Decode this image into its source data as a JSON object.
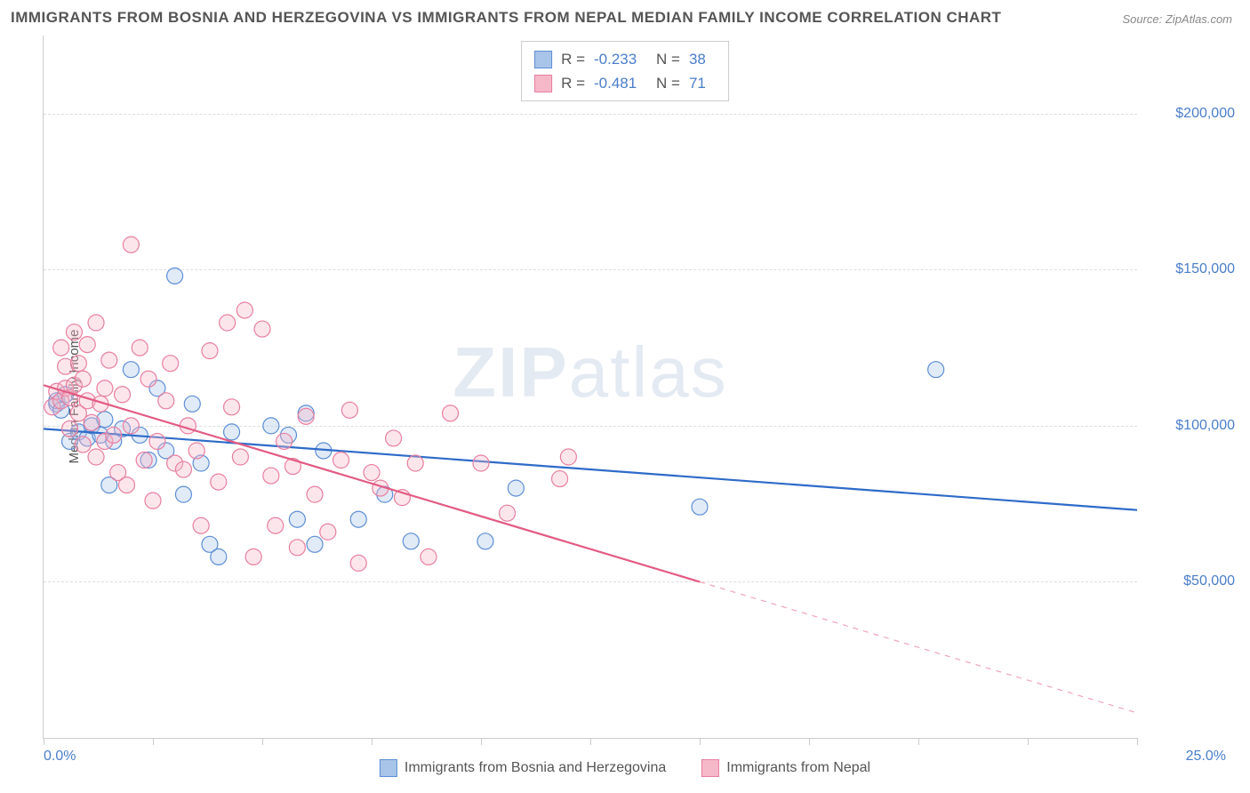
{
  "title": "IMMIGRANTS FROM BOSNIA AND HERZEGOVINA VS IMMIGRANTS FROM NEPAL MEDIAN FAMILY INCOME CORRELATION CHART",
  "source": "Source: ZipAtlas.com",
  "ylabel": "Median Family Income",
  "watermark_bold": "ZIP",
  "watermark_light": "atlas",
  "chart": {
    "type": "scatter",
    "background_color": "#ffffff",
    "grid_color": "#dddddd",
    "axis_color": "#cccccc",
    "xlim": [
      0.0,
      25.0
    ],
    "ylim": [
      0,
      225000
    ],
    "x_unit": "%",
    "y_prefix": "$",
    "yticks": [
      50000,
      100000,
      150000,
      200000
    ],
    "ytick_labels": [
      "$50,000",
      "$100,000",
      "$150,000",
      "$200,000"
    ],
    "xticks_minor": [
      0,
      2.5,
      5,
      7.5,
      10,
      12.5,
      15,
      17.5,
      20,
      22.5,
      25
    ],
    "xlim_labels": [
      "0.0%",
      "25.0%"
    ],
    "marker_radius": 9,
    "marker_stroke_width": 1.2,
    "marker_fill_opacity": 0.35,
    "line_width": 2.2,
    "label_fontsize": 15,
    "tick_fontsize": 16,
    "tick_color": "#4a7ec9",
    "series": [
      {
        "name": "Immigrants from Bosnia and Herzegovina",
        "color_fill": "#a8c4e8",
        "color_stroke": "#5c8fd6",
        "line_color": "#2e6bc9",
        "R": "-0.233",
        "N": "38",
        "trend": {
          "x1": 0.0,
          "y1": 99000,
          "x2": 25.0,
          "y2": 73000,
          "solid_until_x": 25.0
        },
        "points": [
          [
            0.3,
            107000
          ],
          [
            0.3,
            108000
          ],
          [
            0.4,
            105000
          ],
          [
            0.5,
            110000
          ],
          [
            0.6,
            95000
          ],
          [
            0.8,
            98000
          ],
          [
            1.0,
            96000
          ],
          [
            1.1,
            100000
          ],
          [
            1.3,
            97000
          ],
          [
            1.4,
            102000
          ],
          [
            1.5,
            81000
          ],
          [
            1.6,
            95000
          ],
          [
            1.8,
            99000
          ],
          [
            2.0,
            118000
          ],
          [
            2.2,
            97000
          ],
          [
            2.4,
            89000
          ],
          [
            2.6,
            112000
          ],
          [
            2.8,
            92000
          ],
          [
            3.0,
            148000
          ],
          [
            3.2,
            78000
          ],
          [
            3.4,
            107000
          ],
          [
            3.6,
            88000
          ],
          [
            3.8,
            62000
          ],
          [
            4.0,
            58000
          ],
          [
            4.3,
            98000
          ],
          [
            5.2,
            100000
          ],
          [
            5.6,
            97000
          ],
          [
            5.8,
            70000
          ],
          [
            6.0,
            104000
          ],
          [
            6.2,
            62000
          ],
          [
            6.4,
            92000
          ],
          [
            7.2,
            70000
          ],
          [
            7.8,
            78000
          ],
          [
            8.4,
            63000
          ],
          [
            10.1,
            63000
          ],
          [
            10.8,
            80000
          ],
          [
            15.0,
            74000
          ],
          [
            20.4,
            118000
          ]
        ]
      },
      {
        "name": "Immigrants from Nepal",
        "color_fill": "#f5b8c8",
        "color_stroke": "#e87fa0",
        "line_color": "#e35b83",
        "R": "-0.481",
        "N": "71",
        "trend": {
          "x1": 0.0,
          "y1": 113000,
          "x2": 25.0,
          "y2": 8000,
          "solid_until_x": 15.0
        },
        "points": [
          [
            0.2,
            106000
          ],
          [
            0.3,
            111000
          ],
          [
            0.4,
            108000
          ],
          [
            0.4,
            125000
          ],
          [
            0.5,
            112000
          ],
          [
            0.5,
            119000
          ],
          [
            0.6,
            109000
          ],
          [
            0.6,
            99000
          ],
          [
            0.7,
            113000
          ],
          [
            0.7,
            130000
          ],
          [
            0.8,
            120000
          ],
          [
            0.8,
            104000
          ],
          [
            0.9,
            115000
          ],
          [
            0.9,
            94000
          ],
          [
            1.0,
            126000
          ],
          [
            1.0,
            108000
          ],
          [
            1.1,
            101000
          ],
          [
            1.2,
            133000
          ],
          [
            1.2,
            90000
          ],
          [
            1.3,
            107000
          ],
          [
            1.4,
            112000
          ],
          [
            1.4,
            95000
          ],
          [
            1.5,
            121000
          ],
          [
            1.6,
            97000
          ],
          [
            1.7,
            85000
          ],
          [
            1.8,
            110000
          ],
          [
            1.9,
            81000
          ],
          [
            2.0,
            100000
          ],
          [
            2.0,
            158000
          ],
          [
            2.2,
            125000
          ],
          [
            2.3,
            89000
          ],
          [
            2.4,
            115000
          ],
          [
            2.5,
            76000
          ],
          [
            2.6,
            95000
          ],
          [
            2.8,
            108000
          ],
          [
            2.9,
            120000
          ],
          [
            3.0,
            88000
          ],
          [
            3.2,
            86000
          ],
          [
            3.3,
            100000
          ],
          [
            3.5,
            92000
          ],
          [
            3.6,
            68000
          ],
          [
            3.8,
            124000
          ],
          [
            4.0,
            82000
          ],
          [
            4.2,
            133000
          ],
          [
            4.3,
            106000
          ],
          [
            4.5,
            90000
          ],
          [
            4.6,
            137000
          ],
          [
            4.8,
            58000
          ],
          [
            5.0,
            131000
          ],
          [
            5.2,
            84000
          ],
          [
            5.3,
            68000
          ],
          [
            5.5,
            95000
          ],
          [
            5.7,
            87000
          ],
          [
            5.8,
            61000
          ],
          [
            6.0,
            103000
          ],
          [
            6.2,
            78000
          ],
          [
            6.5,
            66000
          ],
          [
            6.8,
            89000
          ],
          [
            7.0,
            105000
          ],
          [
            7.2,
            56000
          ],
          [
            7.5,
            85000
          ],
          [
            7.7,
            80000
          ],
          [
            8.0,
            96000
          ],
          [
            8.2,
            77000
          ],
          [
            8.5,
            88000
          ],
          [
            8.8,
            58000
          ],
          [
            9.3,
            104000
          ],
          [
            10.0,
            88000
          ],
          [
            10.6,
            72000
          ],
          [
            11.8,
            83000
          ],
          [
            12.0,
            90000
          ]
        ]
      }
    ]
  },
  "legend_bottom": [
    "Immigrants from Bosnia and Herzegovina",
    "Immigrants from Nepal"
  ]
}
